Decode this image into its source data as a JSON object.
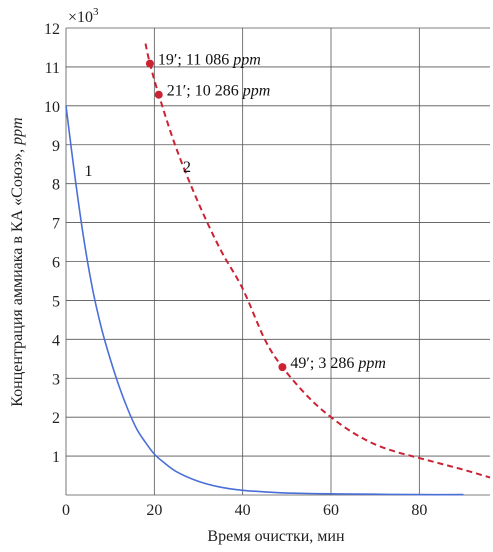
{
  "chart_data": {
    "type": "line",
    "xlabel": "Время очистки, мин",
    "ylabel": "Концентрация аммиака в КА «Союз», ppm",
    "ylabel_plain": "Концентрация аммиака в КА «Союз», ",
    "ylabel_unit": "ppm",
    "y_multiplier_base": "×10",
    "y_multiplier_exp": "3",
    "xlim": [
      0,
      96
    ],
    "ylim": [
      0,
      12
    ],
    "x_ticks": [
      0,
      20,
      40,
      60,
      80
    ],
    "x_tick_labels": [
      "0",
      "20",
      "40",
      "60",
      "80"
    ],
    "y_ticks": [
      1,
      2,
      3,
      4,
      5,
      6,
      7,
      8,
      9,
      10,
      11,
      12
    ],
    "y_tick_labels": [
      "1",
      "2",
      "3",
      "4",
      "5",
      "6",
      "7",
      "8",
      "9",
      "10",
      "11",
      "12"
    ],
    "grid": true,
    "series": [
      {
        "name": "1",
        "style": "solid",
        "color": "#4a6fd8",
        "x": [
          0,
          2,
          4,
          6,
          8,
          10,
          12,
          14,
          16,
          18,
          20,
          22,
          25,
          30,
          35,
          40,
          45,
          50,
          60,
          70,
          80,
          90
        ],
        "y": [
          10.0,
          8.2,
          6.6,
          5.3,
          4.3,
          3.5,
          2.8,
          2.2,
          1.7,
          1.35,
          1.05,
          0.85,
          0.6,
          0.35,
          0.2,
          0.12,
          0.08,
          0.05,
          0.03,
          0.02,
          0.01,
          0.01
        ]
      },
      {
        "name": "2",
        "style": "dashed",
        "color": "#cc2233",
        "x": [
          18,
          19,
          21,
          25,
          30,
          35,
          40,
          45,
          49,
          55,
          60,
          65,
          70,
          75,
          80,
          85,
          90,
          96
        ],
        "y": [
          11.6,
          11.086,
          10.286,
          8.9,
          7.5,
          6.3,
          5.3,
          4.0,
          3.286,
          2.5,
          2.0,
          1.6,
          1.3,
          1.1,
          0.95,
          0.8,
          0.65,
          0.45
        ]
      }
    ],
    "series_labels": [
      {
        "text": "1",
        "x": 4.2,
        "y": 8.2
      },
      {
        "text": "2",
        "x": 26.5,
        "y": 8.3
      }
    ],
    "annotations": [
      {
        "x": 19,
        "y": 11.086,
        "text_prefix": "19′; 11 086 ",
        "text_unit": "ppm",
        "color": "#cc2233"
      },
      {
        "x": 21,
        "y": 10.286,
        "text_prefix": "21′; 10 286 ",
        "text_unit": "ppm",
        "color": "#cc2233"
      },
      {
        "x": 49,
        "y": 3.286,
        "text_prefix": "49′; 3 286 ",
        "text_unit": "ppm",
        "color": "#cc2233"
      }
    ]
  }
}
